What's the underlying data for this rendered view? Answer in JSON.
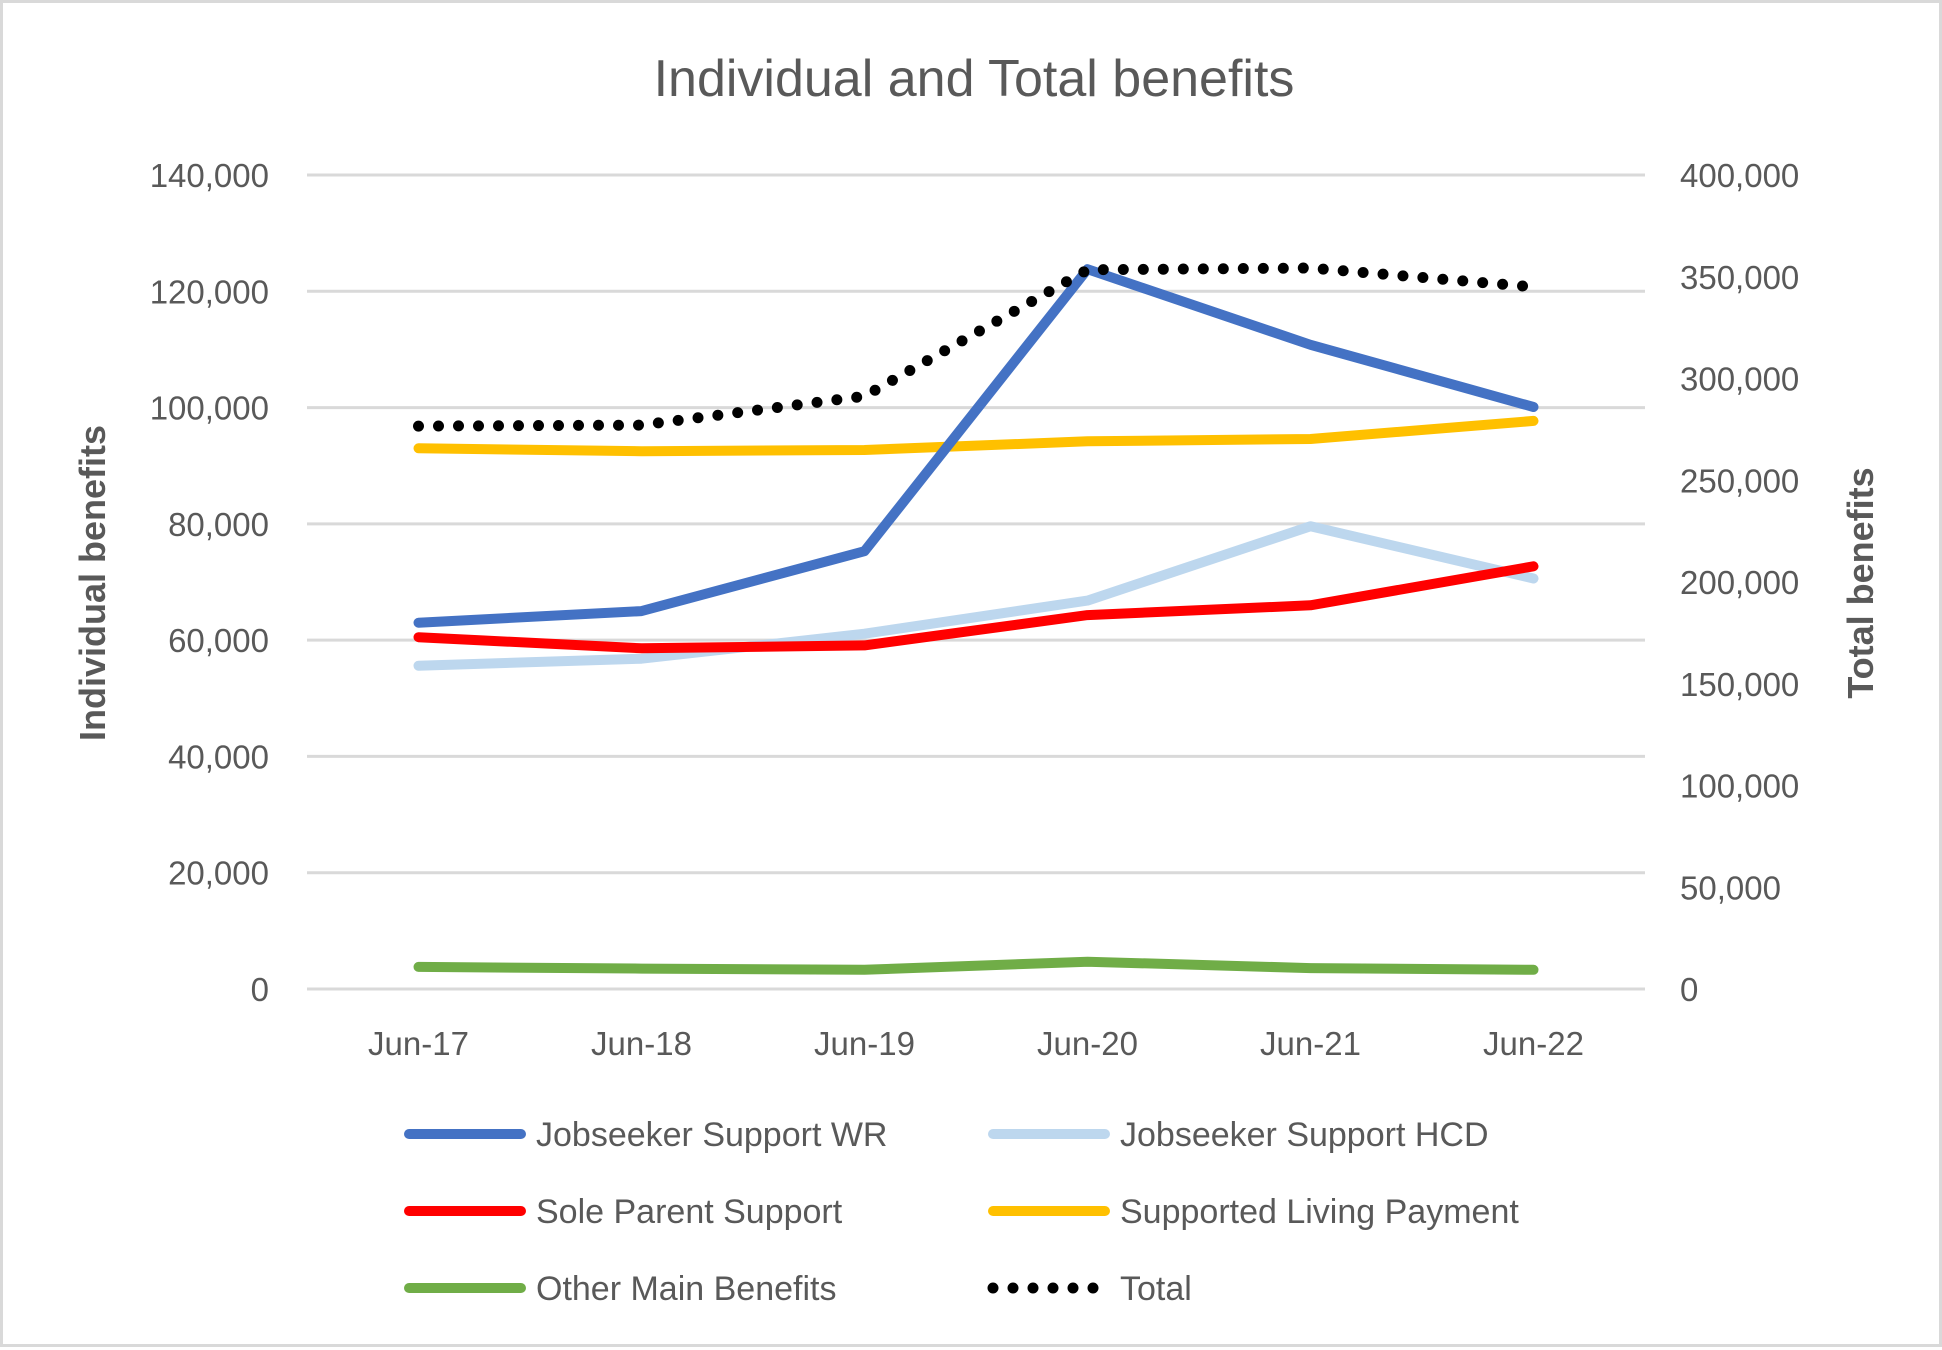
{
  "chart_data": {
    "type": "line",
    "title": "Individual and Total benefits",
    "xlabel": "",
    "ylabel": "Individual benefits",
    "y2label": "Total benefits",
    "categories": [
      "Jun-17",
      "Jun-18",
      "Jun-19",
      "Jun-20",
      "Jun-21",
      "Jun-22"
    ],
    "ylim": [
      0,
      140000
    ],
    "y_ticks": [
      0,
      20000,
      40000,
      60000,
      80000,
      100000,
      120000,
      140000
    ],
    "y_tick_labels": [
      "0",
      "20,000",
      "40,000",
      "60,000",
      "80,000",
      "100,000",
      "120,000",
      "140,000"
    ],
    "y2lim": [
      0,
      400000
    ],
    "y2_ticks": [
      0,
      50000,
      100000,
      150000,
      200000,
      250000,
      300000,
      350000,
      400000
    ],
    "y2_tick_labels": [
      "0",
      "50,000",
      "100,000",
      "150,000",
      "200,000",
      "250,000",
      "300,000",
      "350,000",
      "400,000"
    ],
    "grid": true,
    "legend_position": "bottom",
    "series": [
      {
        "name": "Jobseeker Support WR",
        "axis": "left",
        "color": "#4472c4",
        "style": "solid",
        "values": [
          63000,
          65000,
          75300,
          123800,
          110800,
          100100
        ]
      },
      {
        "name": "Jobseeker Support HCD",
        "axis": "left",
        "color": "#bdd7ee",
        "style": "solid",
        "values": [
          55600,
          56800,
          61100,
          66800,
          79600,
          70600
        ]
      },
      {
        "name": "Sole Parent Support",
        "axis": "left",
        "color": "#ff0000",
        "style": "solid",
        "values": [
          60500,
          58600,
          59100,
          64300,
          66000,
          72700
        ]
      },
      {
        "name": "Supported Living Payment",
        "axis": "left",
        "color": "#ffc000",
        "style": "solid",
        "values": [
          93000,
          92500,
          92700,
          94200,
          94600,
          97700
        ]
      },
      {
        "name": "Other Main Benefits",
        "axis": "left",
        "color": "#70ad47",
        "style": "solid",
        "values": [
          3800,
          3500,
          3300,
          4700,
          3600,
          3300
        ]
      },
      {
        "name": "Total",
        "axis": "right",
        "color": "#000000",
        "style": "dotted",
        "values": [
          276600,
          277100,
          291300,
          353400,
          354300,
          345000
        ]
      }
    ]
  }
}
